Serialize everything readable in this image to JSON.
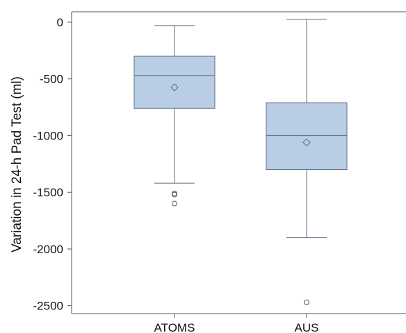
{
  "chart_data": {
    "type": "box",
    "title": "",
    "xlabel": "",
    "ylabel": "Variation in 24-h Pad Test (ml)",
    "ylim": [
      -2560,
      85
    ],
    "y_ticks": [
      0,
      -500,
      -1000,
      -1500,
      -2000,
      -2500
    ],
    "y_tick_labels": [
      "0",
      "-500",
      "-1000",
      "-1500",
      "-2000",
      "-2500"
    ],
    "grid": false,
    "colors": {
      "box_fill": "#b9cde5",
      "box_stroke": "#5e6f86",
      "axis": "#555555",
      "marker": "#5e6f86"
    },
    "categories": [
      "ATOMS",
      "AUS"
    ],
    "series": [
      {
        "category": "ATOMS",
        "whisker_high": -30,
        "q3": -300,
        "median": -470,
        "mean": -575,
        "q1": -760,
        "whisker_low": -1420,
        "outliers": [
          -1510,
          -1520,
          -1600
        ]
      },
      {
        "category": "AUS",
        "whisker_high": 25,
        "q3": -710,
        "median": -1000,
        "mean": -1060,
        "q1": -1300,
        "whisker_low": -1900,
        "outliers": [
          -2470
        ]
      }
    ]
  }
}
